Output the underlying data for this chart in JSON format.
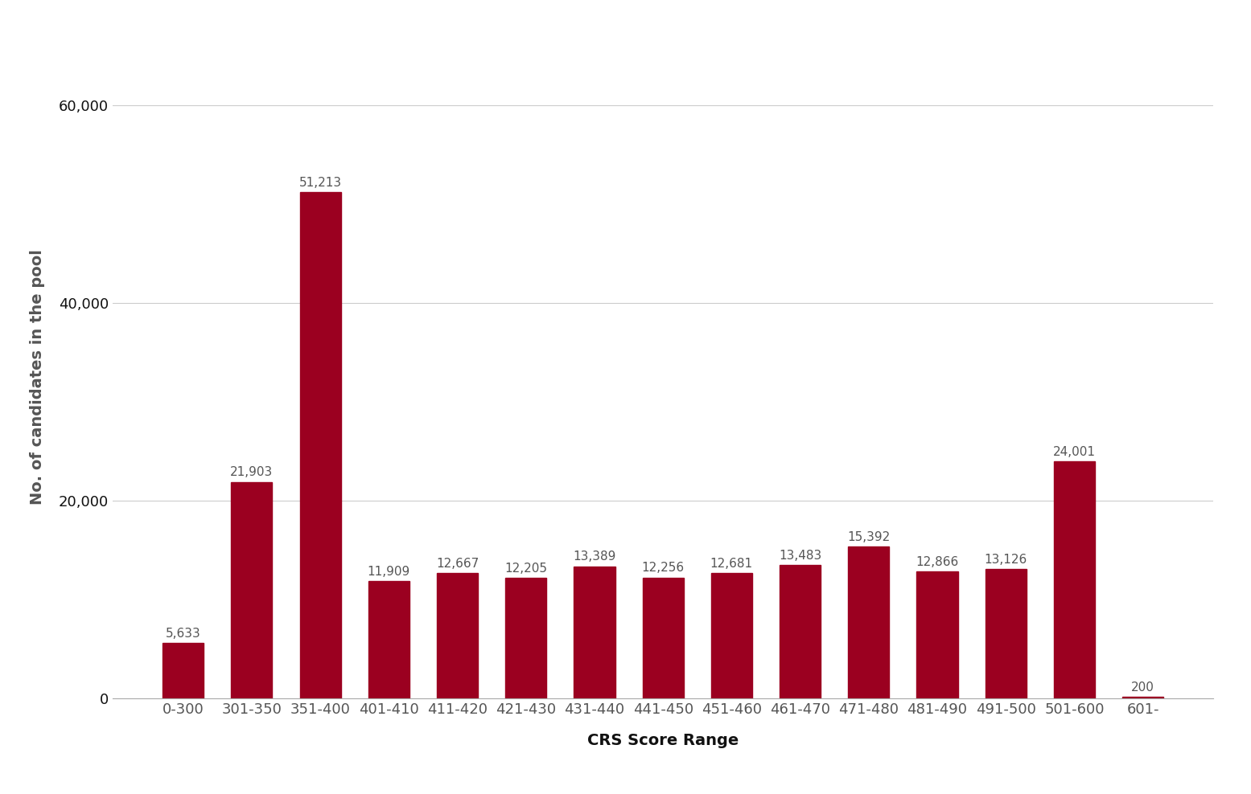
{
  "categories": [
    "0-300",
    "301-350",
    "351-400",
    "401-410",
    "411-420",
    "421-430",
    "431-440",
    "441-450",
    "451-460",
    "461-470",
    "471-480",
    "481-490",
    "491-500",
    "501-600",
    "601-"
  ],
  "values": [
    5633,
    21903,
    51213,
    11909,
    12667,
    12205,
    13389,
    12256,
    12681,
    13483,
    15392,
    12866,
    13126,
    24001,
    200
  ],
  "bar_color": "#9B0020",
  "xlabel": "CRS Score Range",
  "ylabel": "No. of candidates in the pool",
  "ylim": [
    0,
    65000
  ],
  "yticks": [
    0,
    20000,
    40000,
    60000
  ],
  "background_color": "#ffffff",
  "label_fontsize": 11.0,
  "axis_label_fontsize": 14,
  "tick_label_fontsize": 13,
  "bar_width": 0.6
}
